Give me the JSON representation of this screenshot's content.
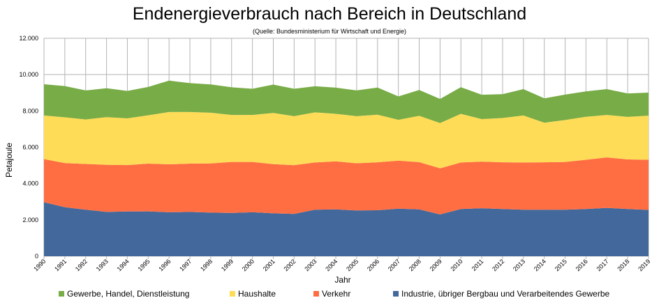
{
  "chart_data": {
    "type": "area",
    "stacked": true,
    "title": "Endenergieverbrauch nach Bereich in Deutschland",
    "subtitle": "(Quelle: Bundesministerium für Wirtschaft und Energie)",
    "xlabel": "Jahr",
    "ylabel": "Petajoule",
    "ylim": [
      0,
      12000
    ],
    "yticks": [
      "0",
      "2.000",
      "4.000",
      "6.000",
      "8.000",
      "10.000",
      "12.000"
    ],
    "x": [
      "1990",
      "1991",
      "1992",
      "1993",
      "1994",
      "1995",
      "1996",
      "1997",
      "1998",
      "1999",
      "2000",
      "2001",
      "2002",
      "2003",
      "2004",
      "2005",
      "2006",
      "2007",
      "2008",
      "2009",
      "2010",
      "2011",
      "2012",
      "2013",
      "2014",
      "2015",
      "2016",
      "2017",
      "2018",
      "2019"
    ],
    "grid": true,
    "legend_position": "bottom",
    "series": [
      {
        "name": "Industrie, übriger Bergbau und Verarbeitendes Gewerbe",
        "color": "#43699C",
        "values": [
          2970,
          2700,
          2560,
          2440,
          2460,
          2470,
          2420,
          2440,
          2400,
          2380,
          2420,
          2360,
          2330,
          2560,
          2580,
          2520,
          2530,
          2620,
          2580,
          2300,
          2600,
          2640,
          2600,
          2560,
          2560,
          2560,
          2600,
          2660,
          2600,
          2550
        ]
      },
      {
        "name": "Verkehr",
        "color": "#FF6E43",
        "values": [
          2380,
          2430,
          2520,
          2590,
          2560,
          2630,
          2640,
          2660,
          2710,
          2810,
          2770,
          2710,
          2680,
          2600,
          2640,
          2600,
          2640,
          2640,
          2600,
          2540,
          2560,
          2570,
          2570,
          2600,
          2610,
          2630,
          2710,
          2780,
          2730,
          2760
        ]
      },
      {
        "name": "Haushalte",
        "color": "#FFDC57",
        "values": [
          2400,
          2520,
          2450,
          2630,
          2570,
          2660,
          2880,
          2840,
          2790,
          2590,
          2590,
          2820,
          2700,
          2760,
          2620,
          2590,
          2620,
          2250,
          2550,
          2490,
          2680,
          2340,
          2440,
          2590,
          2180,
          2310,
          2370,
          2340,
          2340,
          2430
        ]
      },
      {
        "name": "Gewerbe, Handel, Dienstleistung",
        "color": "#78AC47",
        "values": [
          1720,
          1720,
          1600,
          1590,
          1510,
          1560,
          1730,
          1590,
          1560,
          1520,
          1440,
          1560,
          1510,
          1440,
          1440,
          1420,
          1500,
          1290,
          1420,
          1330,
          1470,
          1340,
          1310,
          1450,
          1340,
          1400,
          1400,
          1420,
          1290,
          1270
        ]
      }
    ]
  }
}
